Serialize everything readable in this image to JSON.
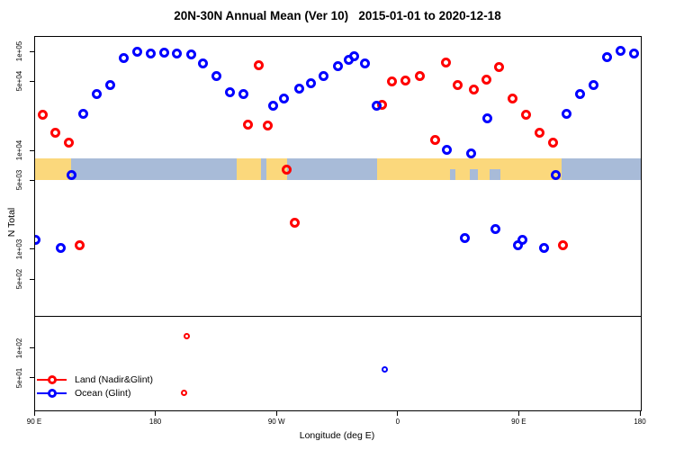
{
  "title": "20N-30N Annual Mean (Ver 10)   2015-01-01 to 2020-12-18",
  "axes": {
    "xlabel": "Longitude (deg E)",
    "ylabel": "N Total"
  },
  "legend": {
    "items": [
      {
        "label": "Land (Nadir&Glint)",
        "color": "#ff0000"
      },
      {
        "label": "Ocean (Glint)",
        "color": "#0000ff"
      }
    ]
  },
  "colors": {
    "axis": "#000000",
    "land_series": "#ff0000",
    "ocean_series": "#0000ff",
    "map_land": "#fbd87c",
    "map_ocean": "#a8bbd8"
  },
  "chart_data": {
    "type": "scatter",
    "title": "20N-30N Annual Mean (Ver 10)   2015-01-01 to 2020-12-18",
    "xlabel": "Longitude (deg E)",
    "ylabel": "N Total",
    "grid": false,
    "legend_position": "bottom-left",
    "x_axis": {
      "min": 90,
      "max": 540,
      "ticks": [
        {
          "value": 90,
          "label": "90 E"
        },
        {
          "value": 180,
          "label": "180"
        },
        {
          "value": 270,
          "label": "90 W"
        },
        {
          "value": 360,
          "label": "0"
        },
        {
          "value": 450,
          "label": "90 E"
        },
        {
          "value": 540,
          "label": "180"
        }
      ]
    },
    "y_axis": {
      "scale": "log",
      "min": 24,
      "max": 143000,
      "ticks": [
        {
          "value": 100000,
          "label": "1e+05"
        },
        {
          "value": 50000,
          "label": "5e+04"
        },
        {
          "value": 10000,
          "label": "1e+04"
        },
        {
          "value": 5000,
          "label": "5e+03"
        },
        {
          "value": 1000,
          "label": "1e+03"
        },
        {
          "value": 500,
          "label": "5e+02"
        },
        {
          "value": 100,
          "label": "1e+02"
        },
        {
          "value": 50,
          "label": "5e+01"
        }
      ]
    },
    "separator_value": 217,
    "map_band": {
      "value_top": 8450,
      "value_bottom": 5120,
      "ocean_color": "#a8bbd8",
      "land_color": "#fbd87c",
      "land_segments": [
        [
          90,
          117
        ],
        [
          240,
          258
        ],
        [
          262,
          277
        ],
        [
          344,
          481
        ]
      ],
      "ocean_notches": [
        [
          398,
          402
        ],
        [
          413,
          419
        ],
        [
          428,
          436
        ]
      ]
    },
    "series": [
      {
        "name": "Land (Nadir&Glint)",
        "color": "#ff0000",
        "points": [
          [
            96,
            23600
          ],
          [
            105,
            15500
          ],
          [
            115,
            12300
          ],
          [
            123,
            1130
          ],
          [
            201,
            35.7,
            1
          ],
          [
            203,
            133,
            1
          ],
          [
            248,
            18700
          ],
          [
            256,
            74600
          ],
          [
            263,
            18000
          ],
          [
            277,
            6460
          ],
          [
            283,
            1890
          ],
          [
            348,
            29700
          ],
          [
            355,
            51200
          ],
          [
            365,
            52300
          ],
          [
            376,
            56900
          ],
          [
            387,
            13100
          ],
          [
            395,
            79400
          ],
          [
            404,
            47000
          ],
          [
            416,
            42400
          ],
          [
            425,
            53300
          ],
          [
            435,
            71500
          ],
          [
            445,
            34300
          ],
          [
            455,
            23600
          ],
          [
            465,
            15500
          ],
          [
            475,
            12300
          ],
          [
            482,
            1110
          ]
        ]
      },
      {
        "name": "Ocean (Glint)",
        "color": "#0000ff",
        "points": [
          [
            90,
            1260
          ],
          [
            109,
            1060
          ],
          [
            117,
            5770
          ],
          [
            126,
            24100
          ],
          [
            136,
            38100
          ],
          [
            146,
            47000
          ],
          [
            156,
            88200
          ],
          [
            166,
            102000
          ],
          [
            176,
            97900
          ],
          [
            186,
            100000
          ],
          [
            195,
            97900
          ],
          [
            206,
            96000
          ],
          [
            215,
            77800
          ],
          [
            225,
            58000
          ],
          [
            235,
            39800
          ],
          [
            245,
            38100
          ],
          [
            267,
            29100
          ],
          [
            275,
            34400
          ],
          [
            286,
            43300
          ],
          [
            295,
            49000
          ],
          [
            304,
            56900
          ],
          [
            315,
            73000
          ],
          [
            323,
            84600
          ],
          [
            327,
            91800
          ],
          [
            335,
            77800
          ],
          [
            344,
            29100
          ],
          [
            350,
            62,
            1
          ],
          [
            396,
            10400
          ],
          [
            409,
            1330
          ],
          [
            414,
            9550
          ],
          [
            426,
            21300
          ],
          [
            432,
            1640
          ],
          [
            449,
            1110
          ],
          [
            452,
            1260
          ],
          [
            468,
            1060
          ],
          [
            477,
            5770
          ],
          [
            485,
            24100
          ],
          [
            495,
            38100
          ],
          [
            505,
            47000
          ],
          [
            515,
            90000
          ],
          [
            525,
            104000
          ],
          [
            535,
            97900
          ]
        ]
      }
    ]
  }
}
